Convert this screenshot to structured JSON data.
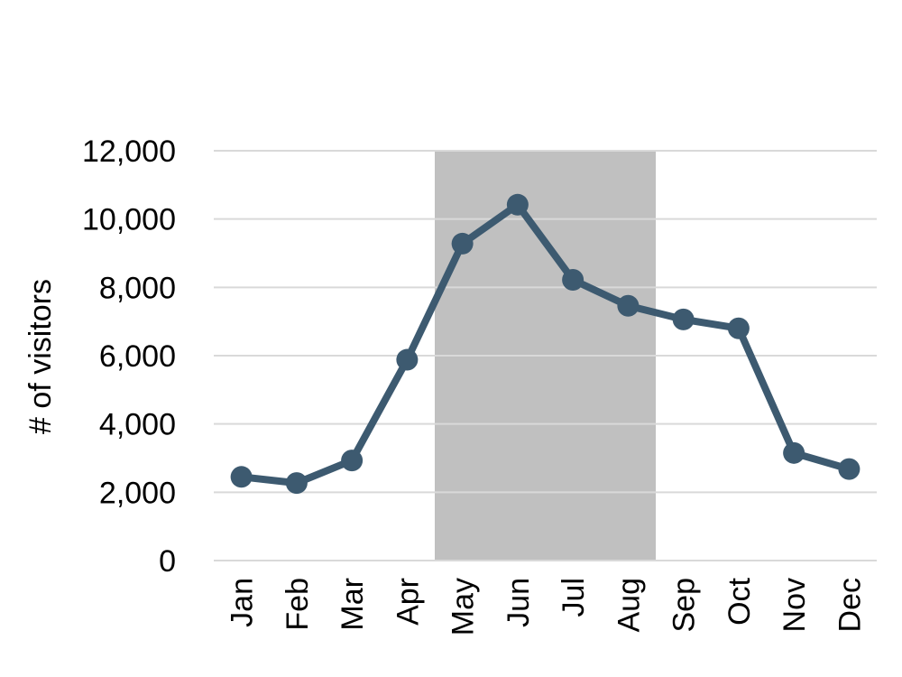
{
  "chart_data": {
    "type": "line",
    "title": "",
    "xlabel": "",
    "ylabel": "# of visitors",
    "ylim": [
      0,
      12000
    ],
    "yticks": [
      0,
      2000,
      4000,
      6000,
      8000,
      10000,
      12000
    ],
    "ytick_labels": [
      "0",
      "2,000",
      "4,000",
      "6,000",
      "8,000",
      "10,000",
      "12,000"
    ],
    "categories": [
      "Jan",
      "Feb",
      "Mar",
      "Apr",
      "May",
      "Jun",
      "Jul",
      "Aug",
      "Sep",
      "Oct",
      "Nov",
      "Dec"
    ],
    "series": [
      {
        "values": [
          2450,
          2270,
          2930,
          5880,
          9280,
          10420,
          8220,
          7460,
          7060,
          6800,
          3150,
          2680
        ]
      }
    ],
    "highlight_range": [
      "May",
      "Aug"
    ],
    "grid": true,
    "colors": {
      "line": "#3d5a70",
      "highlight": "#c0c0c0",
      "grid": "#d9d9d9"
    }
  }
}
